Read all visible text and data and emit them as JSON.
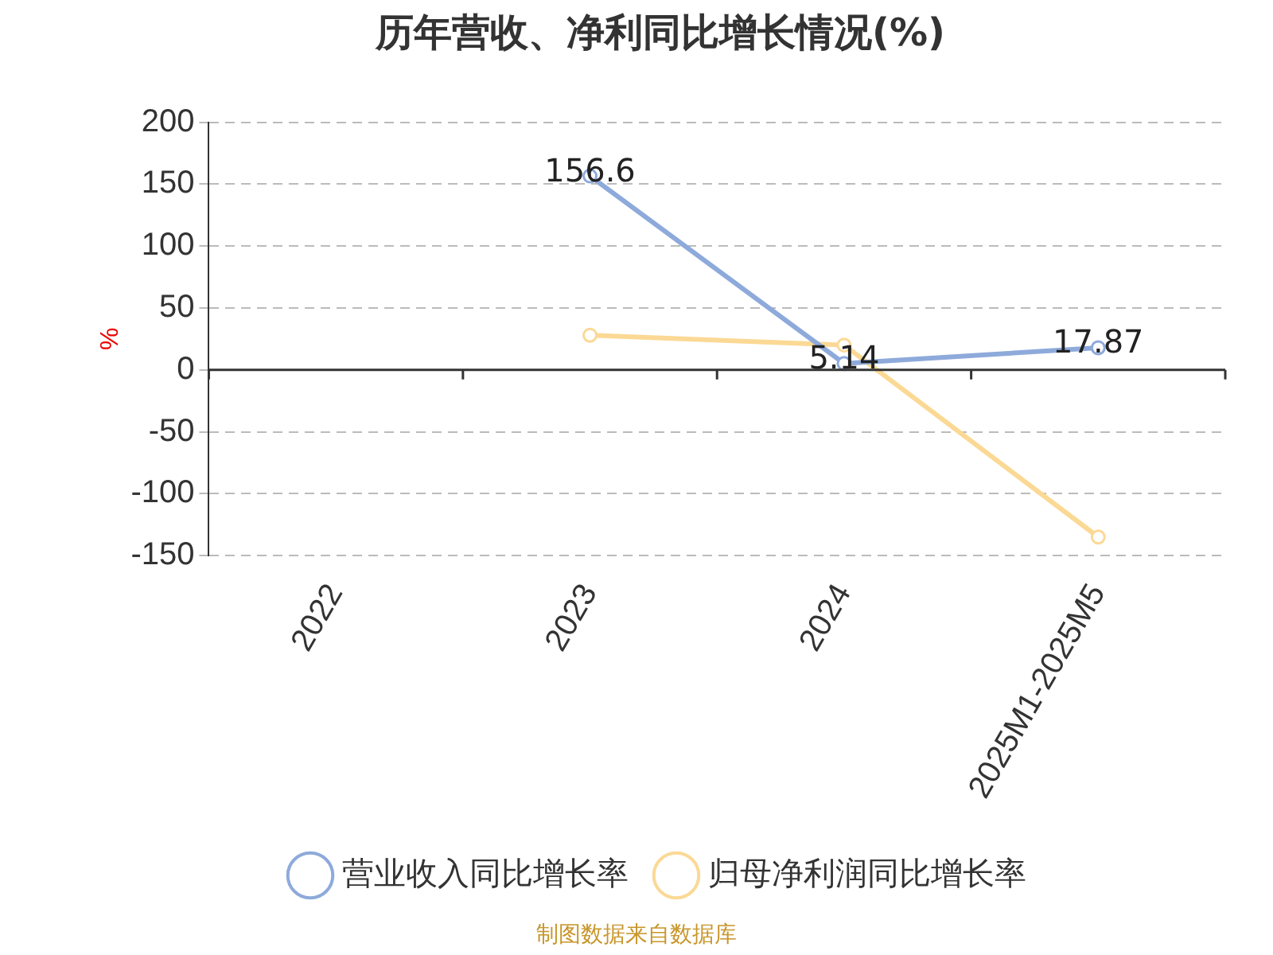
{
  "chart_data": {
    "type": "line",
    "title": "历年营收、净利同比增长情况(%)",
    "ylabel": "%",
    "categories": [
      "2022",
      "2023",
      "2024",
      "2025M1-2025M5"
    ],
    "series": [
      {
        "name": "营业收入同比增长率",
        "color": "#8eaadb",
        "values": [
          null,
          156.6,
          5.14,
          17.87
        ],
        "value_labels": [
          null,
          "156.6",
          "5.14",
          "17.87"
        ]
      },
      {
        "name": "归母净利润同比增长率",
        "color": "#fbd995",
        "values": [
          null,
          28,
          20,
          -135
        ]
      }
    ],
    "ylim": [
      -150,
      200
    ],
    "yticks": [
      -150,
      -100,
      -50,
      0,
      50,
      100,
      150,
      200
    ],
    "grid": "y",
    "legend": "bottom",
    "marker": "circle",
    "line_style": "solid",
    "annotations": [
      "制图数据来自数据库"
    ]
  }
}
